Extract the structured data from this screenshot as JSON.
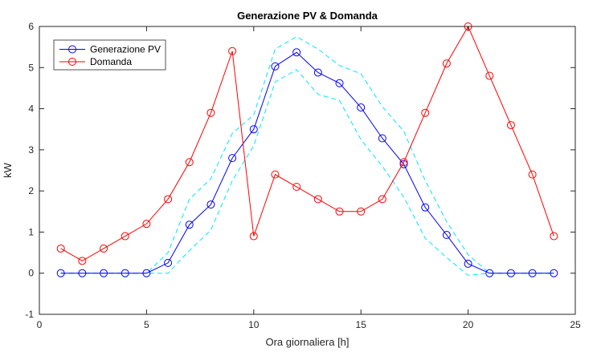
{
  "chart_data": {
    "type": "line",
    "title": "Generazione PV & Domanda",
    "xlabel": "Ora giornaliera [h]",
    "ylabel": "kW",
    "xlim": [
      0,
      25
    ],
    "ylim": [
      -1,
      6
    ],
    "xticks": [
      0,
      5,
      10,
      15,
      20,
      25
    ],
    "yticks": [
      -1,
      0,
      1,
      2,
      3,
      4,
      5,
      6
    ],
    "grid": false,
    "legend_position": "top-left",
    "x": [
      1,
      2,
      3,
      4,
      5,
      6,
      7,
      8,
      9,
      10,
      11,
      12,
      13,
      14,
      15,
      16,
      17,
      18,
      19,
      20,
      21,
      22,
      23,
      24
    ],
    "series": [
      {
        "name": "Generazione PV",
        "color": "#0000ff",
        "marker": "circle",
        "values": [
          0,
          0,
          0,
          0,
          0,
          0.25,
          1.18,
          1.67,
          2.8,
          3.5,
          5.03,
          5.37,
          4.88,
          4.62,
          4.03,
          3.28,
          2.65,
          1.6,
          0.93,
          0.23,
          0,
          0,
          0,
          0
        ]
      },
      {
        "name": "Domanda",
        "color": "#ff0000",
        "marker": "circle",
        "values": [
          0.6,
          0.3,
          0.6,
          0.9,
          1.2,
          1.8,
          2.7,
          3.9,
          5.4,
          0.9,
          2.4,
          2.1,
          1.8,
          1.5,
          1.5,
          1.8,
          2.7,
          3.9,
          5.1,
          6.0,
          4.8,
          3.6,
          2.4,
          0.9
        ]
      }
    ],
    "bands": [
      {
        "color": "#00e5ff",
        "style": "dashed",
        "upper": [
          0,
          0,
          0,
          0,
          0,
          0.5,
          1.8,
          2.3,
          3.4,
          3.85,
          5.45,
          5.75,
          5.45,
          5.05,
          4.85,
          4.05,
          3.45,
          2.25,
          1.25,
          0.45,
          0,
          0,
          0,
          0
        ],
        "lower": [
          0,
          0,
          0,
          0,
          0,
          0,
          0.55,
          1.05,
          2.25,
          3.1,
          4.65,
          4.95,
          4.35,
          4.2,
          3.25,
          2.6,
          1.85,
          0.85,
          0.38,
          -0.05,
          0,
          0,
          0,
          0
        ]
      }
    ]
  }
}
